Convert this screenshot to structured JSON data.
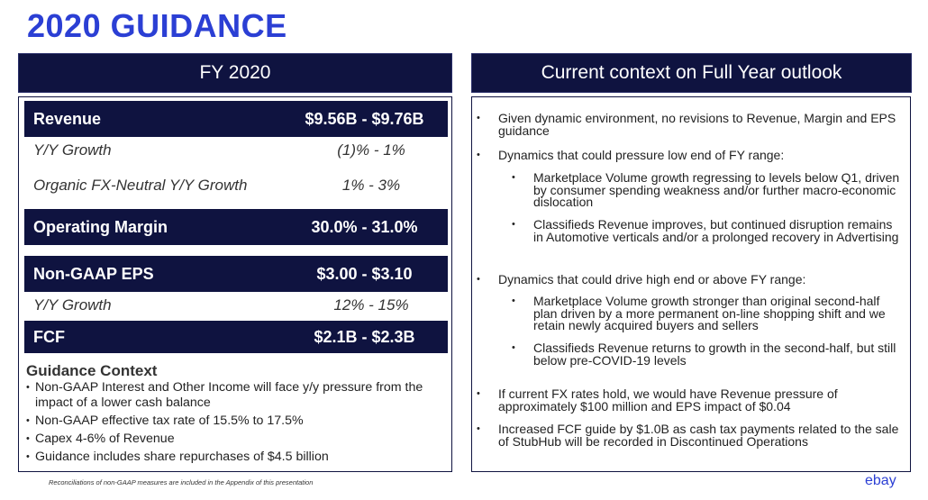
{
  "title": "2020 GUIDANCE",
  "left_panel": {
    "heading": "FY 2020",
    "rows": [
      {
        "label": "Revenue",
        "value": "$9.56B - $9.76B"
      },
      {
        "label": "Y/Y Growth",
        "value": "(1)% - 1%"
      },
      {
        "label": "Organic FX-Neutral Y/Y Growth",
        "value": "1% - 3%"
      },
      {
        "label": "Operating Margin",
        "value": "30.0% - 31.0%"
      },
      {
        "label": "Non-GAAP EPS",
        "value": "$3.00 - $3.10"
      },
      {
        "label": "Y/Y Growth",
        "value": "12% - 15%"
      },
      {
        "label": "FCF",
        "value": "$2.1B - $2.3B"
      }
    ],
    "context_title": "Guidance Context",
    "context_items": [
      "Non-GAAP Interest and Other Income will face y/y pressure from the impact of a lower cash balance",
      "Non-GAAP effective tax rate of 15.5% to 17.5%",
      "Capex 4-6% of Revenue",
      "Guidance includes share repurchases of $4.5 billion"
    ]
  },
  "right_panel": {
    "heading": "Current context on Full Year outlook",
    "items": [
      {
        "text": "Given dynamic environment, no revisions to Revenue, Margin and EPS guidance"
      },
      {
        "text": "Dynamics that could pressure low end of FY range:",
        "subitems": [
          "Marketplace Volume growth regressing to levels below Q1, driven by consumer spending weakness and/or further macro-economic dislocation",
          "Classifieds Revenue improves, but continued disruption remains in Automotive verticals and/or a prolonged recovery in Advertising"
        ]
      },
      {
        "text": "Dynamics that could drive high end or above FY range:",
        "subitems": [
          "Marketplace Volume growth stronger than original second-half plan driven by a more permanent on-line shopping shift and we retain newly acquired buyers and sellers",
          "Classifieds Revenue returns to growth in the second-half, but still below pre-COVID-19 levels"
        ]
      },
      {
        "text": "If current FX rates hold, we would have Revenue pressure of approximately $100 million and EPS impact of $0.04"
      },
      {
        "text": "Increased FCF guide by $1.0B as cash tax payments related to the sale of StubHub will be recorded in Discontinued Operations"
      }
    ]
  },
  "footnote": "Reconciliations of non-GAAP measures are included in the Appendix of this presentation",
  "logo": "ebay",
  "colors": {
    "navy": "#0f1340",
    "brand_blue": "#2b3fd4"
  }
}
